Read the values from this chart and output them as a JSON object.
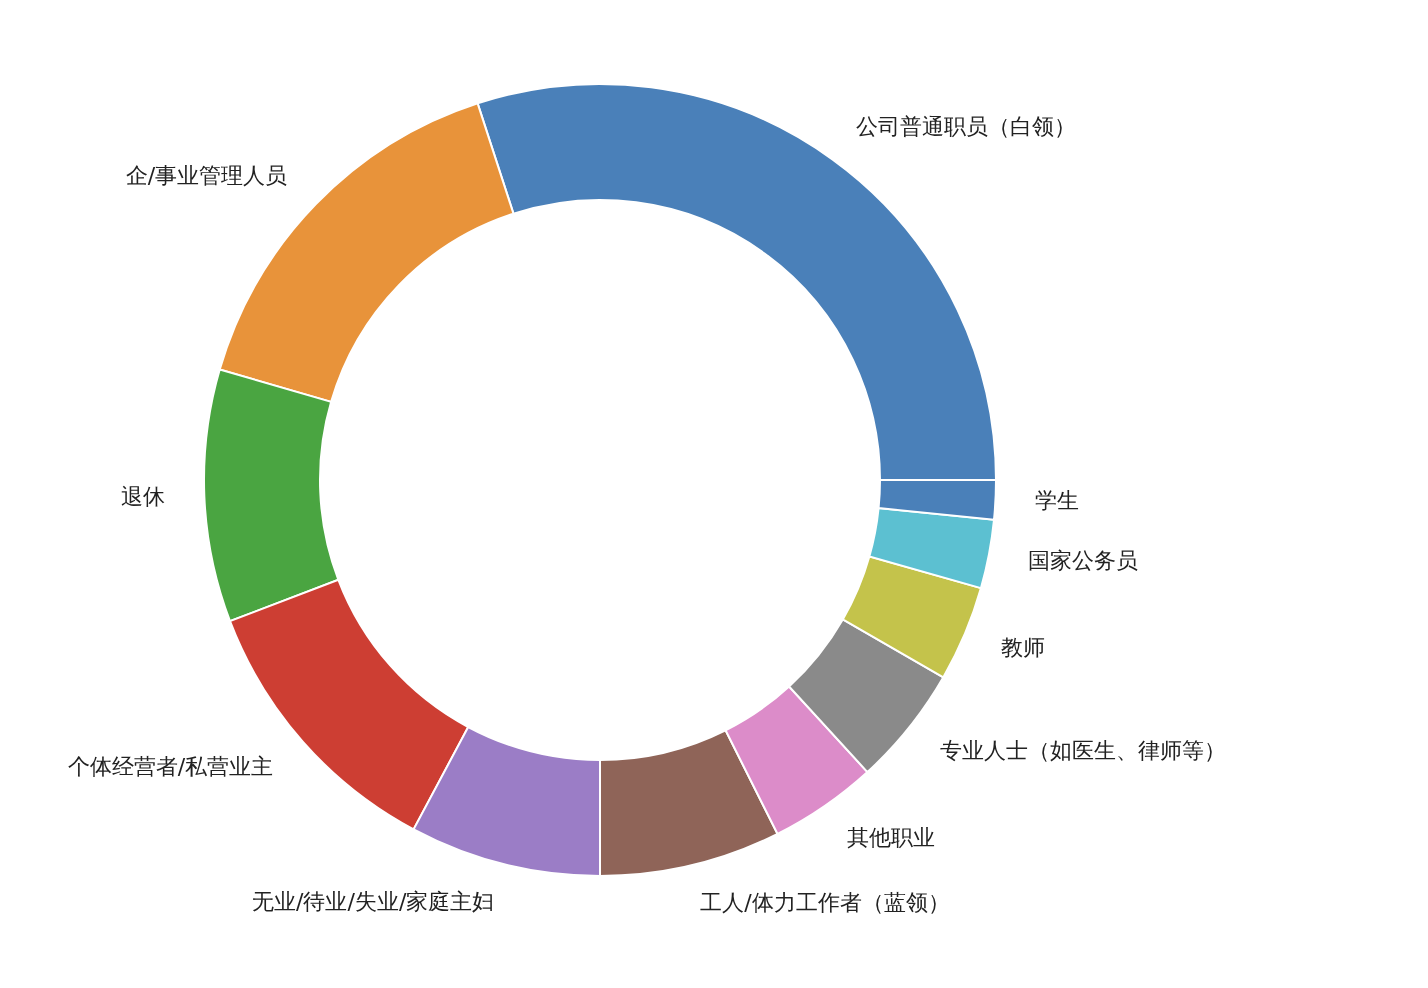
{
  "chart_data": {
    "type": "donut",
    "categories": [
      "公司普通职员（白领）",
      "企/事业管理人员",
      "退休",
      "个体经营者/私营业主",
      "无业/待业/失业/家庭主妇",
      "工人/体力工作者（蓝领）",
      "其他职业",
      "专业人士（如医生、律师等）",
      "教师",
      "国家公务员",
      "学生"
    ],
    "values": [
      30.0,
      15.5,
      10.3,
      11.4,
      7.8,
      7.4,
      4.4,
      4.9,
      3.9,
      2.8,
      1.6
    ],
    "colors": [
      "#4a80b9",
      "#e8933a",
      "#4aa541",
      "#cd3e33",
      "#9b7dc6",
      "#8f6458",
      "#dc8cc9",
      "#8a8a8a",
      "#c4c34b",
      "#5cc0d1",
      "#4a80b9"
    ]
  }
}
